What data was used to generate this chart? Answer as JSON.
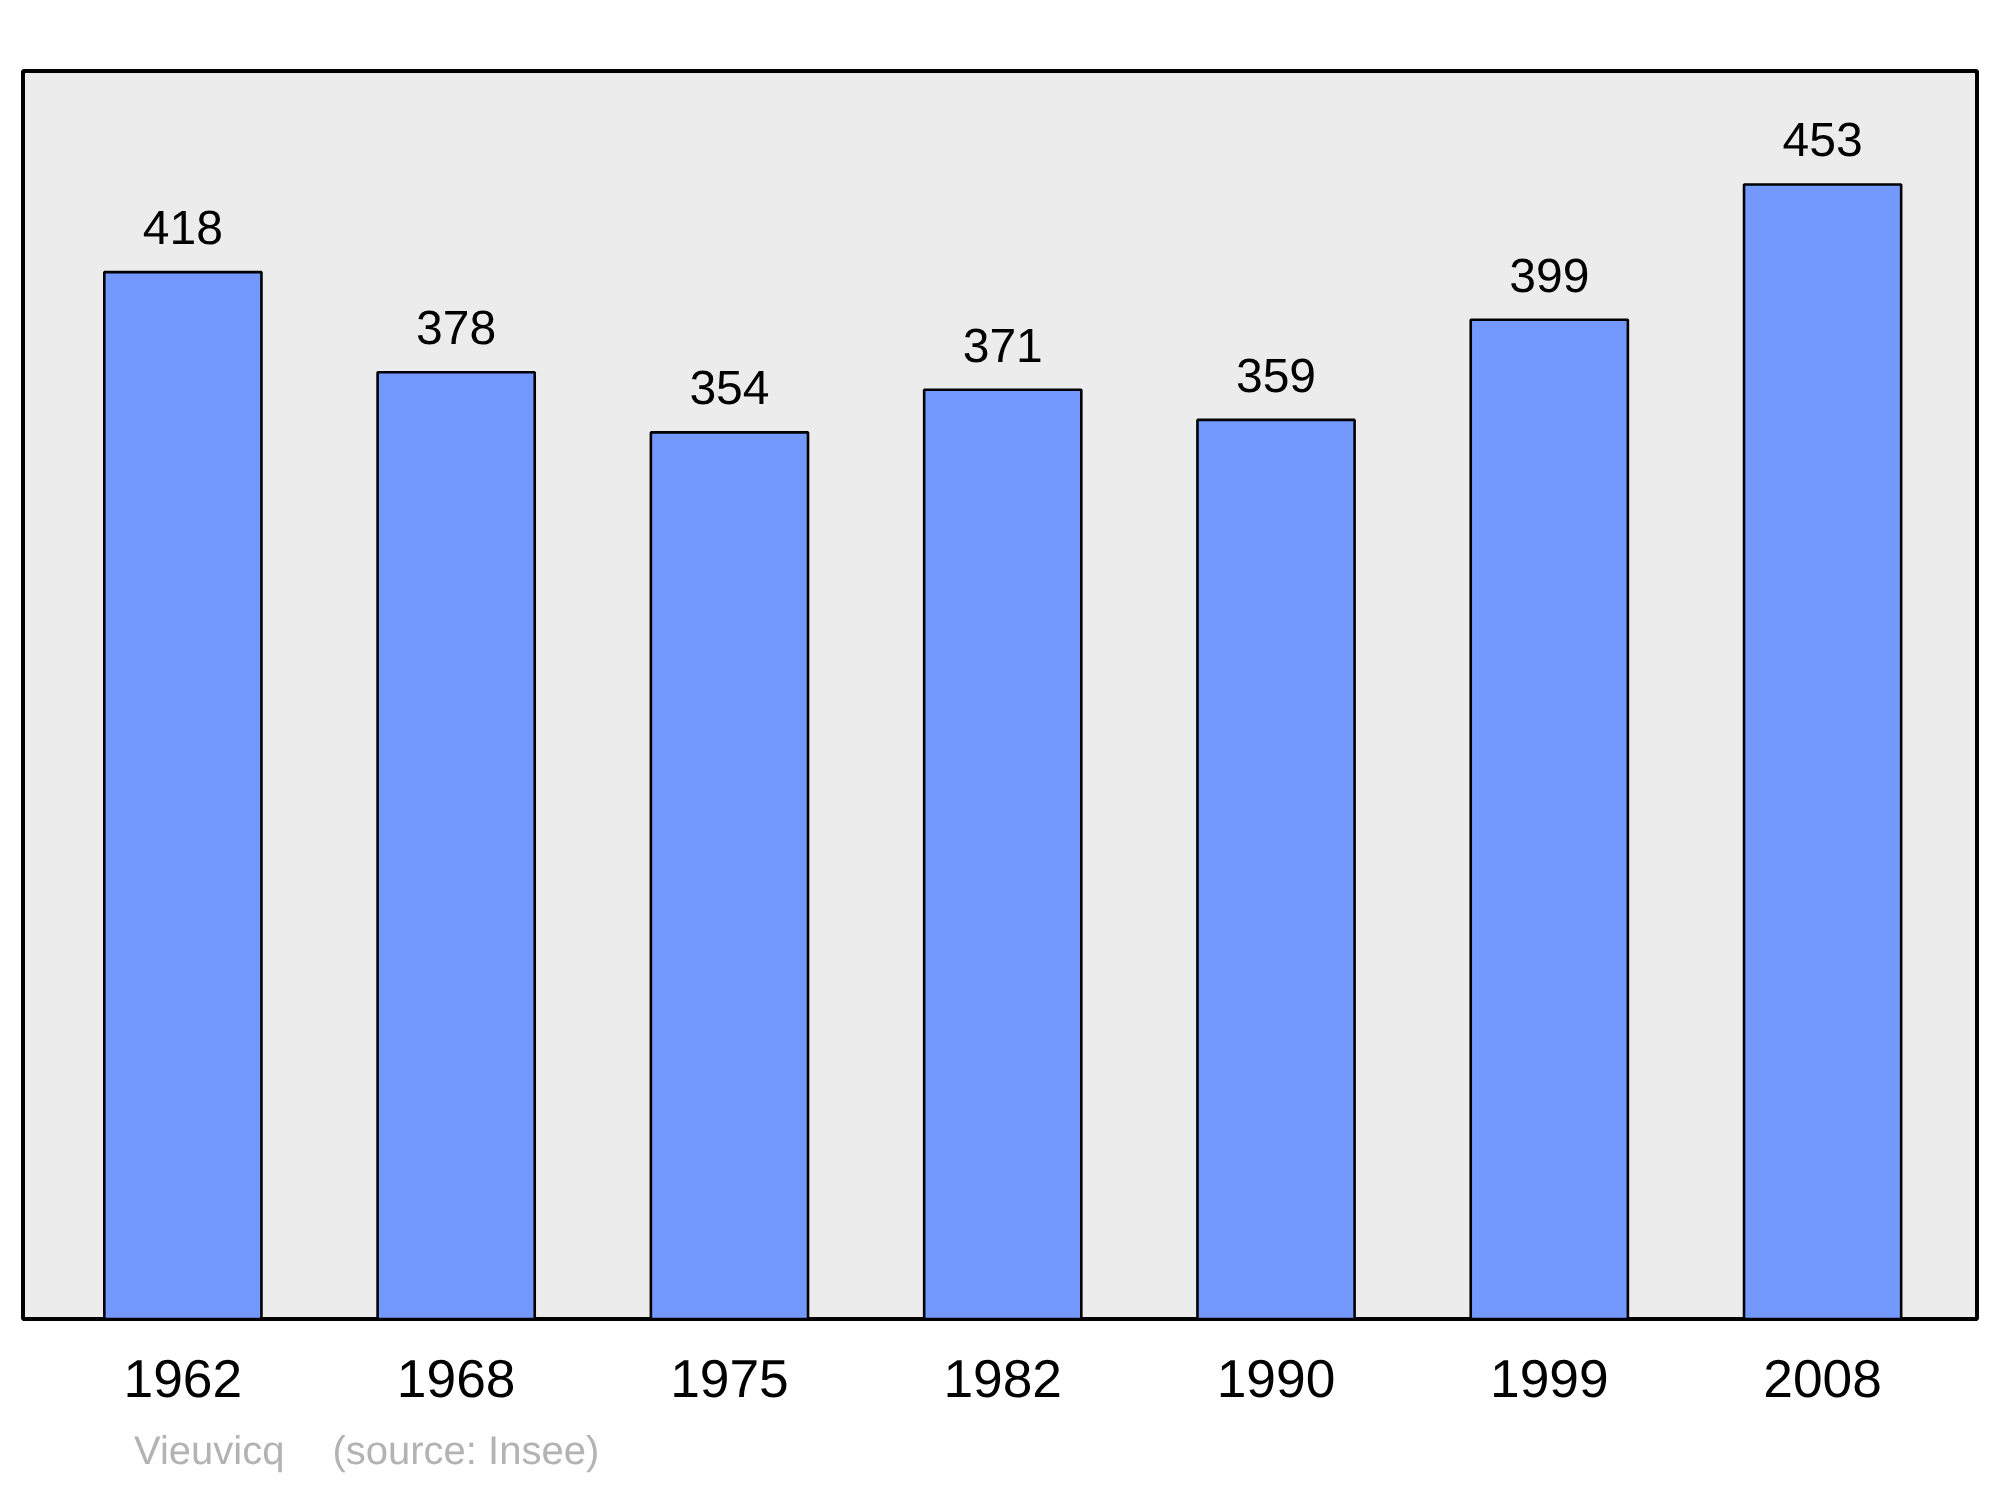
{
  "chart_data": {
    "type": "bar",
    "categories": [
      "1962",
      "1968",
      "1975",
      "1982",
      "1990",
      "1999",
      "2008"
    ],
    "values": [
      418,
      378,
      354,
      371,
      359,
      399,
      453
    ],
    "color": "#7399ff",
    "data_labels": true,
    "grid": false,
    "tick_labels": "x",
    "annotations": [
      "Vieuvicq",
      "(source: Insee)"
    ]
  }
}
